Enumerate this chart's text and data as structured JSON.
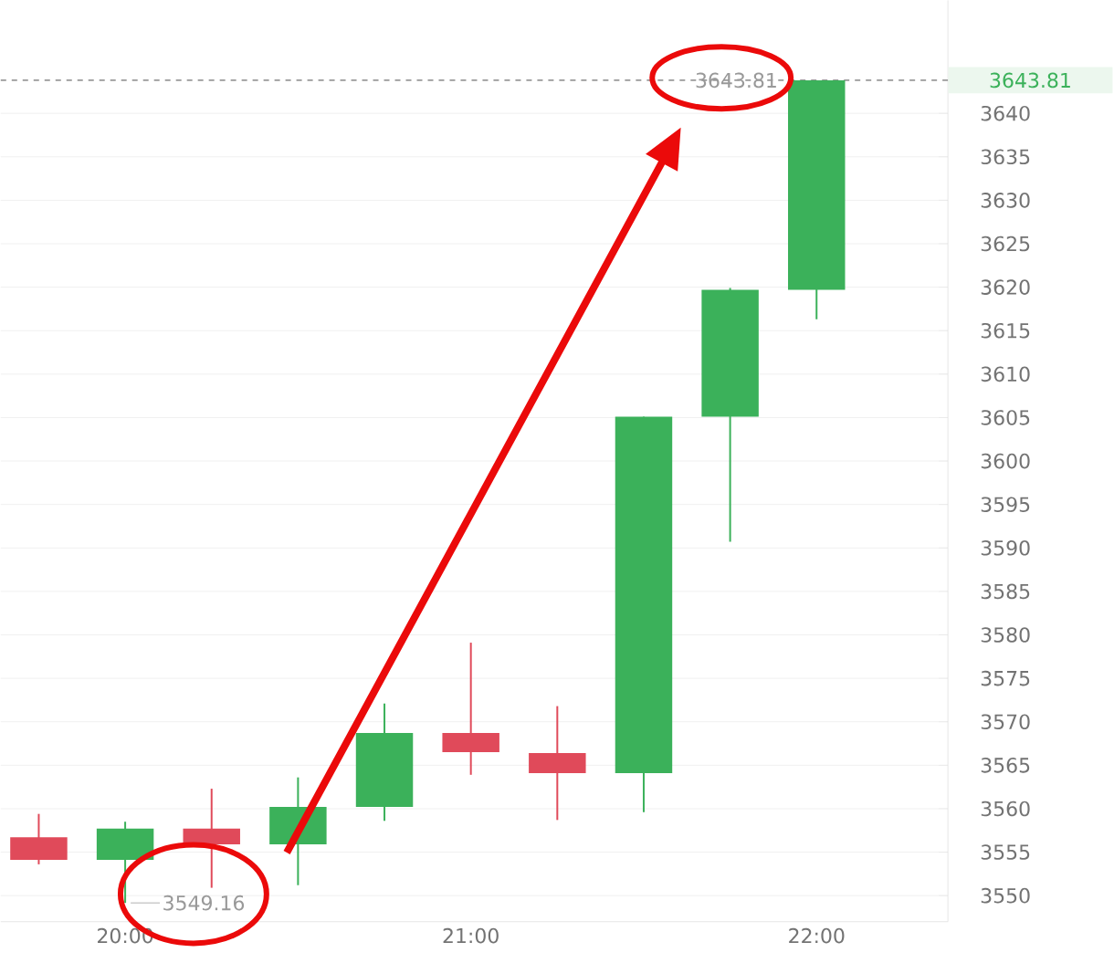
{
  "chart_data": {
    "type": "candlestick",
    "x": [
      19.75,
      20,
      20.25,
      20.5,
      20.75,
      21,
      21.25,
      21.5,
      21.75,
      22
    ],
    "ohlc": [
      [
        3556.7,
        3559.4,
        3553.6,
        3554.1
      ],
      [
        3554.1,
        3558.5,
        3549.16,
        3557.7
      ],
      [
        3557.7,
        3562.3,
        3550.9,
        3555.9
      ],
      [
        3555.9,
        3563.6,
        3551.2,
        3560.2
      ],
      [
        3560.2,
        3572.1,
        3558.6,
        3568.7
      ],
      [
        3568.7,
        3579.1,
        3563.9,
        3566.5
      ],
      [
        3566.4,
        3571.8,
        3558.7,
        3564.1
      ],
      [
        3564.1,
        3605.1,
        3559.6,
        3605.1
      ],
      [
        3605.1,
        3619.9,
        3590.7,
        3619.7
      ],
      [
        3619.7,
        3643.81,
        3616.3,
        3643.81
      ]
    ],
    "colors": [
      "#e04a5a",
      "#3bb15a",
      "#e04a5a",
      "#3bb15a",
      "#3bb15a",
      "#e04a5a",
      "#e04a5a",
      "#3bb15a",
      "#3bb15a",
      "#3bb15a"
    ],
    "xlim": [
      19.64,
      22.38
    ],
    "xticks": [
      {
        "value": 20,
        "label": "20:00"
      },
      {
        "value": 21,
        "label": "21:00"
      },
      {
        "value": 22,
        "label": "22:00"
      }
    ],
    "ylim": [
      3547,
      3653
    ],
    "yticks": [
      3550,
      3555,
      3560,
      3565,
      3570,
      3575,
      3580,
      3585,
      3590,
      3595,
      3600,
      3605,
      3610,
      3615,
      3620,
      3625,
      3630,
      3635,
      3640
    ],
    "grid": "y",
    "ref_lines": [
      {
        "axis": "y",
        "value": 3643.81,
        "label": "3643.81",
        "color": "#999999",
        "line_style": "dashed"
      }
    ],
    "annotations": [
      {
        "text": "3643.81",
        "x": 22,
        "y": 3643.81
      },
      {
        "text": "3549.16",
        "x": 20,
        "y": 3549.16
      }
    ]
  }
}
